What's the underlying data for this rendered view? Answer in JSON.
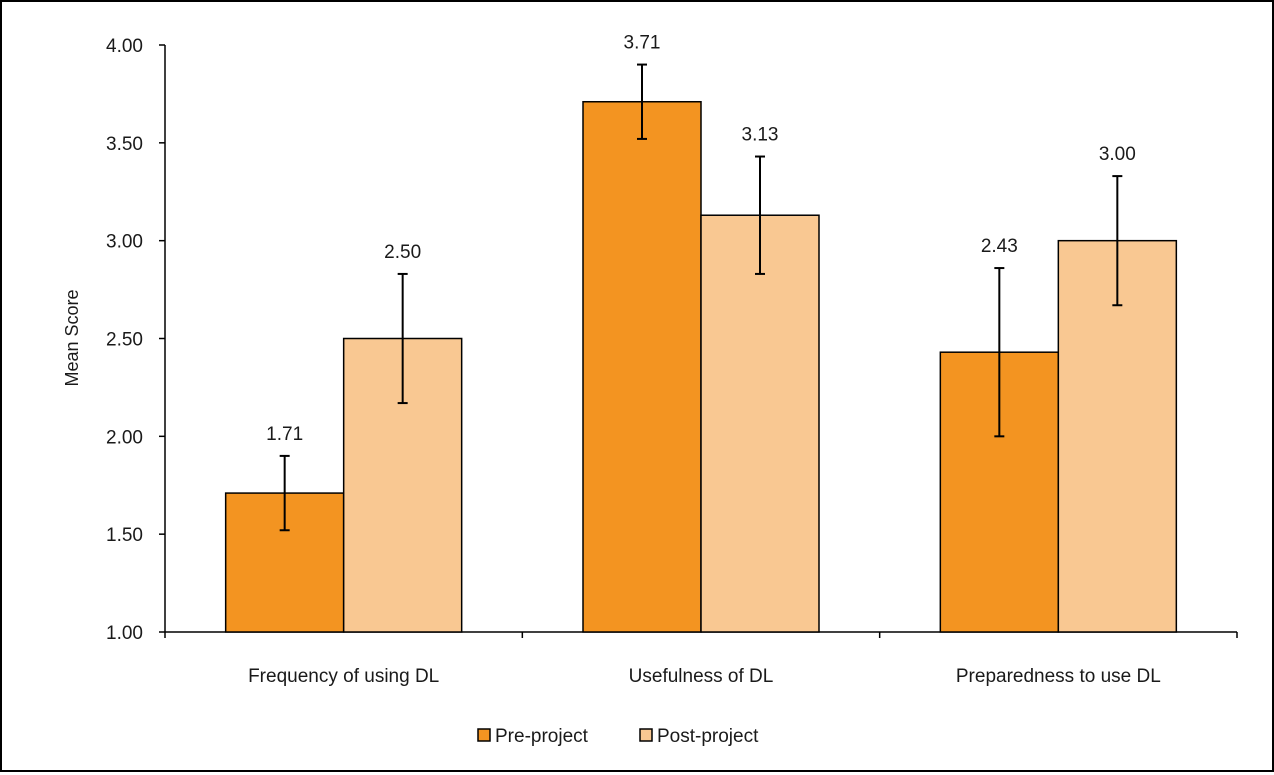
{
  "chart_data": {
    "type": "bar",
    "title": "",
    "xlabel": "",
    "ylabel": "Mean Score",
    "ylim": [
      1.0,
      4.0
    ],
    "yticks": [
      "1.00",
      "1.50",
      "2.00",
      "2.50",
      "3.00",
      "3.50",
      "4.00"
    ],
    "categories": [
      "Frequency of using DL",
      "Usefulness of DL",
      "Preparedness to use DL"
    ],
    "series": [
      {
        "name": "Pre-project",
        "color": "#F39421",
        "values": [
          1.71,
          3.71,
          2.43
        ],
        "labels": [
          "1.71",
          "3.71",
          "2.43"
        ],
        "error": [
          0.19,
          0.19,
          0.43
        ]
      },
      {
        "name": "Post-project",
        "color": "#F9C892",
        "values": [
          2.5,
          3.13,
          3.0
        ],
        "labels": [
          "2.50",
          "3.13",
          "3.00"
        ],
        "error": [
          0.33,
          0.3,
          0.33
        ]
      }
    ],
    "grid": false,
    "legend_position": "bottom-center",
    "error_bars": true
  }
}
